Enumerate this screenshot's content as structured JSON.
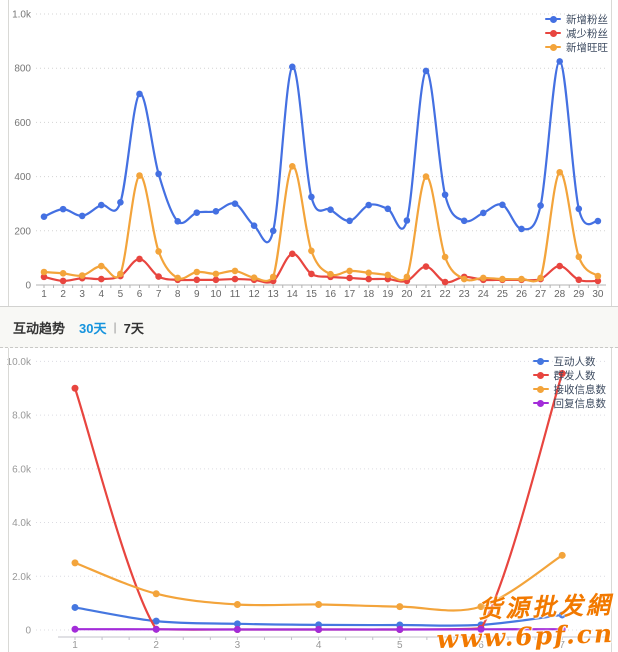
{
  "header": {
    "title": "互动趋势",
    "tab_30": "30天",
    "separator": "|",
    "tab_7": "7天",
    "active_tab": "7天",
    "link_color": "#1593dd"
  },
  "watermark": {
    "line1": "货源批发網",
    "line2": "www.6pf.cn",
    "color": "#f27900"
  },
  "chart_data": [
    {
      "id": "fans-trend",
      "type": "line",
      "smooth": true,
      "grid": "dotted-horizontal",
      "legend_position": "top-right",
      "xlabel": "",
      "ylabel": "",
      "ylim": [
        0,
        1000
      ],
      "y_ticks": [
        0,
        200,
        400,
        600,
        800,
        1000
      ],
      "y_tick_labels": [
        "0",
        "200",
        "400",
        "600",
        "800",
        "1.0k"
      ],
      "categories": [
        "1",
        "2",
        "3",
        "4",
        "5",
        "6",
        "7",
        "8",
        "9",
        "10",
        "11",
        "12",
        "13",
        "14",
        "15",
        "16",
        "17",
        "18",
        "19",
        "20",
        "21",
        "22",
        "23",
        "24",
        "25",
        "26",
        "27",
        "28",
        "29",
        "30"
      ],
      "series": [
        {
          "name": "新增粉丝",
          "color": "#4470e2",
          "values": [
            252,
            280,
            255,
            295,
            305,
            705,
            410,
            235,
            267,
            272,
            300,
            219,
            200,
            805,
            325,
            278,
            237,
            295,
            281,
            238,
            790,
            333,
            237,
            266,
            296,
            207,
            293,
            825,
            281,
            236
          ]
        },
        {
          "name": "减少粉丝",
          "color": "#e8453f",
          "values": [
            30,
            15,
            25,
            22,
            33,
            96,
            31,
            19,
            19,
            19,
            22,
            19,
            15,
            115,
            41,
            30,
            26,
            22,
            22,
            15,
            68,
            11,
            30,
            19,
            19,
            19,
            22,
            70,
            19,
            15
          ]
        },
        {
          "name": "新增旺旺",
          "color": "#f3a43b",
          "values": [
            48,
            43,
            35,
            70,
            41,
            404,
            124,
            26,
            48,
            41,
            52,
            27,
            30,
            438,
            126,
            40,
            52,
            45,
            37,
            30,
            400,
            103,
            22,
            26,
            22,
            22,
            26,
            416,
            104,
            33
          ]
        }
      ]
    },
    {
      "id": "interaction-trend",
      "type": "line",
      "smooth": true,
      "grid": "dotted-horizontal",
      "legend_position": "top-right",
      "xlabel": "",
      "ylabel": "",
      "ylim": [
        0,
        10000
      ],
      "y_ticks": [
        0,
        2000,
        4000,
        6000,
        8000,
        10000
      ],
      "y_tick_labels": [
        "0",
        "2.0k",
        "4.0k",
        "6.0k",
        "8.0k",
        "10.0k"
      ],
      "categories": [
        "1",
        "2",
        "3",
        "4",
        "5",
        "6",
        "7"
      ],
      "series": [
        {
          "name": "互动人数",
          "color": "#4577e0",
          "values": [
            840,
            330,
            230,
            190,
            185,
            190,
            560
          ]
        },
        {
          "name": "群发人数",
          "color": "#e8453f",
          "values": [
            9000,
            30,
            20,
            20,
            20,
            60,
            9550
          ]
        },
        {
          "name": "接收信息数",
          "color": "#f3a43b",
          "values": [
            2500,
            1350,
            950,
            950,
            870,
            870,
            2780
          ]
        },
        {
          "name": "回复信息数",
          "color": "#a32cd9",
          "values": [
            30,
            25,
            20,
            20,
            20,
            25,
            30
          ]
        }
      ]
    }
  ]
}
